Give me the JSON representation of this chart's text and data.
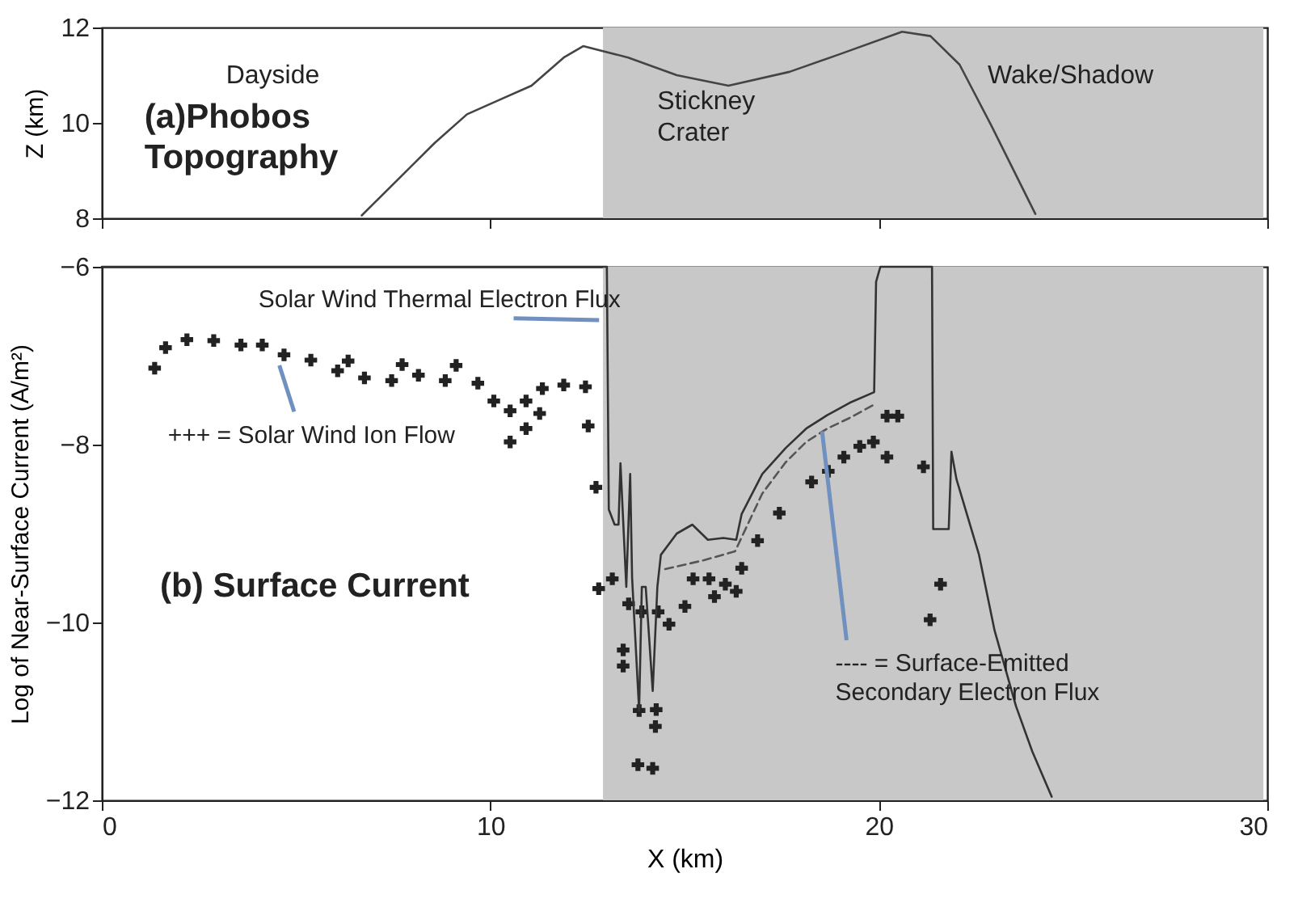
{
  "chart_data": [
    {
      "type": "line",
      "ylabel": "Z (km)",
      "xlim": [
        0,
        30
      ],
      "xticks": [
        0,
        10,
        20,
        30
      ],
      "ylim": [
        8,
        12
      ],
      "yticks": [
        8,
        10,
        12
      ],
      "tick_labels": "y",
      "grid": false,
      "x": [
        6.69,
        7.73,
        8.57,
        9.4,
        10.23,
        11.06,
        11.89,
        12.39,
        13.55,
        14.8,
        16.13,
        17.7,
        18.96,
        20.6,
        21.33,
        22.08,
        22.9,
        24.03
      ],
      "series": [
        {
          "color": "#444444",
          "values": [
            8.06,
            8.9,
            9.58,
            10.18,
            10.48,
            10.78,
            11.37,
            11.61,
            11.37,
            11.0,
            10.78,
            11.07,
            11.43,
            11.91,
            11.82,
            11.22,
            9.94,
            8.09
          ]
        }
      ],
      "bands": [
        {
          "axis": "x",
          "from": 12.9,
          "to": 29.9,
          "color": "#c8c8c8"
        }
      ],
      "annotations": [
        "Dayside",
        "(a)Phobos\nTopography",
        "Stickney\nCrater",
        "Wake/Shadow"
      ]
    },
    {
      "type": "line",
      "xlabel": "X (km)",
      "ylabel": "Log of Near-Surface Current (A/m²)",
      "xlim": [
        0,
        30
      ],
      "xticks": [
        0,
        10,
        20,
        30
      ],
      "ylim": [
        -12,
        -6
      ],
      "yticks": [
        -12,
        -10,
        -8,
        -6
      ],
      "grid": false,
      "series": [
        {
          "type": "scatter",
          "marker": "cross",
          "color": "#222222",
          "x": [
            1.36,
            1.64,
            2.19,
            2.88,
            3.58,
            4.13,
            4.69,
            5.38,
            6.07,
            6.76,
            7.46,
            8.15,
            8.84,
            9.68,
            10.09,
            10.51,
            10.92,
            11.34,
            11.89,
            12.45,
            6.34,
            7.73,
            9.12,
            11.27,
            10.92,
            10.51,
            12.52,
            12.72,
            12.79,
            13.14,
            13.56,
            13.9,
            14.32,
            13.42,
            13.42,
            13.83,
            14.27,
            14.25,
            13.8,
            14.18,
            14.6,
            15.01,
            15.22,
            15.63,
            15.77,
            16.05,
            16.33,
            16.47,
            16.88,
            17.44,
            18.27,
            18.7,
            19.1,
            19.51,
            19.86,
            20.21,
            20.49,
            20.21,
            21.15,
            21.59,
            21.32
          ],
          "values": [
            -7.14,
            -6.91,
            -6.82,
            -6.83,
            -6.88,
            -6.88,
            -6.99,
            -7.05,
            -7.17,
            -7.25,
            -7.28,
            -7.22,
            -7.28,
            -7.31,
            -7.51,
            -7.62,
            -7.51,
            -7.37,
            -7.33,
            -7.35,
            -7.06,
            -7.1,
            -7.11,
            -7.65,
            -7.82,
            -7.97,
            -7.79,
            -8.48,
            -9.62,
            -9.51,
            -9.79,
            -9.88,
            -9.88,
            -10.31,
            -10.49,
            -10.99,
            -10.98,
            -11.17,
            -11.6,
            -11.64,
            -10.02,
            -9.82,
            -9.51,
            -9.51,
            -9.71,
            -9.57,
            -9.65,
            -9.39,
            -9.08,
            -8.77,
            -8.42,
            -8.3,
            -8.14,
            -8.02,
            -7.97,
            -7.68,
            -7.68,
            -8.14,
            -8.25,
            -9.57,
            -9.97
          ]
        },
        {
          "line_style": "solid",
          "color": "#333333",
          "x": [
            0,
            12.8,
            13.0,
            13.05,
            13.2,
            13.3,
            13.35,
            13.5,
            13.6,
            13.65,
            13.83,
            13.9,
            14.0,
            14.18,
            14.3,
            14.39,
            14.8,
            15.2,
            15.6,
            16.0,
            16.33,
            16.47,
            17.0,
            17.6,
            18.13,
            18.67,
            19.25,
            19.88,
            19.93,
            20.04,
            21.37,
            21.4,
            21.8,
            21.87,
            22.0,
            22.58,
            22.98,
            23.53,
            23.95,
            24.45
          ],
          "values": [
            -6,
            -6,
            -6,
            -8.73,
            -8.9,
            -8.9,
            -8.21,
            -9.6,
            -8.33,
            -9.5,
            -10.99,
            -9.6,
            -9.6,
            -10.77,
            -9.6,
            -9.24,
            -9.0,
            -8.9,
            -9.07,
            -9.05,
            -9.07,
            -8.78,
            -8.33,
            -8.04,
            -7.82,
            -7.67,
            -7.53,
            -7.41,
            -6.17,
            -6,
            -6,
            -8.95,
            -8.95,
            -8.08,
            -8.39,
            -9.24,
            -10.09,
            -10.94,
            -11.45,
            -11.96
          ]
        },
        {
          "type": "line",
          "line_style": "dashed",
          "color": "#555555",
          "x": [
            14.5,
            15.5,
            16.3,
            17.0,
            17.6,
            18.13,
            18.67,
            19.25,
            19.88
          ],
          "values": [
            -9.4,
            -9.3,
            -9.2,
            -8.55,
            -8.2,
            -7.97,
            -7.82,
            -7.7,
            -7.55
          ]
        }
      ],
      "bands": [
        {
          "axis": "x",
          "from": 12.9,
          "to": 29.9,
          "color": "#c8c8c8"
        }
      ],
      "annotations": [
        {
          "text": "Solar Wind Thermal Electron Flux",
          "x": 12.8,
          "y": -6.6
        },
        {
          "text": "+++ = Solar Wind Ion Flow",
          "x": 4.57,
          "y": -7.11
        },
        {
          "text": "---- = Surface-Emitted\nSecondary Electron Flux",
          "x": 18.54,
          "y": -7.85
        },
        "(b) Surface Current"
      ]
    }
  ]
}
